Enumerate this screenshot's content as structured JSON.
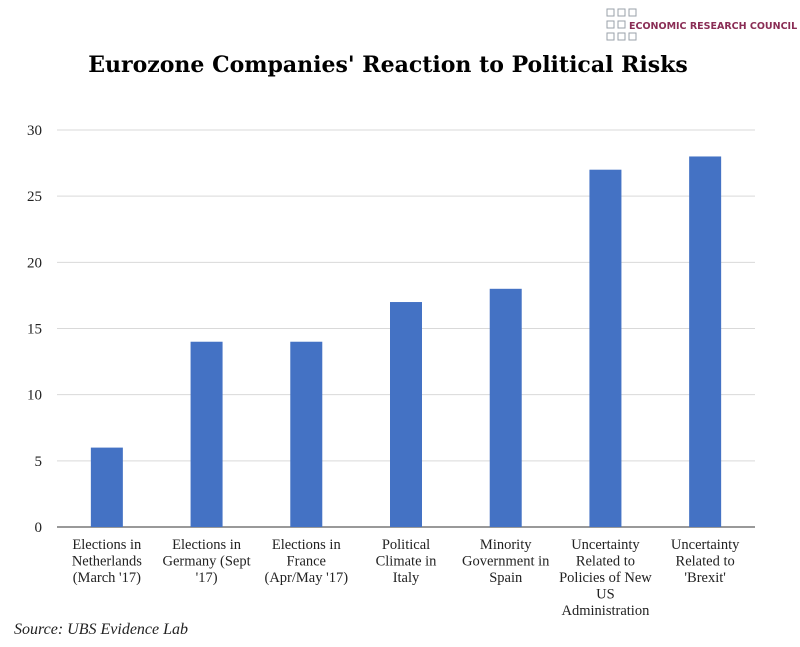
{
  "logo": {
    "text": "ECONOMIC RESEARCH COUNCIL",
    "color": "#8a2d55"
  },
  "source": "Source: UBS Evidence Lab",
  "chart_data": {
    "type": "bar",
    "title": "Eurozone Companies' Reaction to Political Risks",
    "categories": [
      [
        "Elections in",
        "Netherlands",
        "(March '17)"
      ],
      [
        "Elections in",
        "Germany (Sept",
        "'17)"
      ],
      [
        "Elections in",
        "France",
        "(Apr/May '17)"
      ],
      [
        "Political",
        "Climate in",
        "Italy"
      ],
      [
        "Minority",
        "Government in",
        "Spain"
      ],
      [
        "Uncertainty",
        "Related to",
        "Policies of New",
        "US",
        "Administration"
      ],
      [
        "Uncertainty",
        "Related to",
        "'Brexit'"
      ]
    ],
    "values": [
      6,
      14,
      14,
      17,
      18,
      27,
      28
    ],
    "ylim": [
      0,
      30
    ],
    "yticks": [
      0,
      5,
      10,
      15,
      20,
      25,
      30
    ],
    "grid": true,
    "bar_color": "#4472c4",
    "xlabel": "",
    "ylabel": ""
  }
}
